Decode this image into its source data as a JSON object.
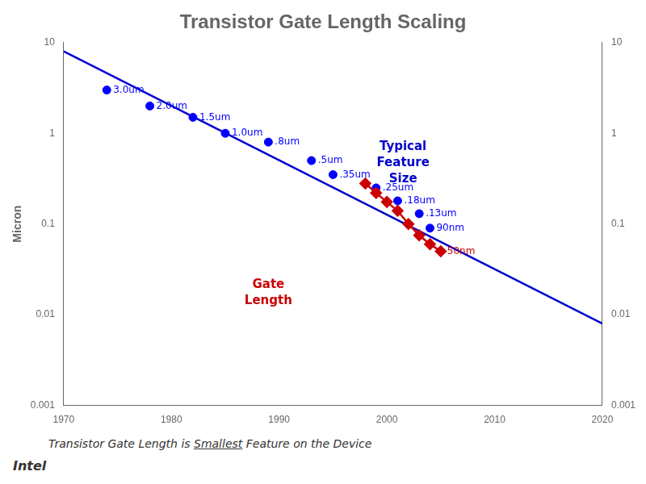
{
  "chart_data": {
    "type": "scatter",
    "title": "Transistor Gate Length Scaling",
    "y_label": "Micron",
    "xlim": [
      1970,
      2020
    ],
    "xticks": [
      1970,
      1980,
      1990,
      2000,
      2010,
      2020
    ],
    "ylim": [
      0.001,
      10
    ],
    "yticks": [
      0.001,
      0.01,
      0.1,
      1,
      10
    ],
    "y2lim": [
      0.001,
      10
    ],
    "y2ticks": [
      0.001,
      0.01,
      0.1,
      1,
      10
    ],
    "log": "y",
    "grid": false,
    "series": [
      {
        "type": "line",
        "color": "#0000CC",
        "x": [
          1970,
          2020
        ],
        "values": [
          8.0,
          0.008
        ]
      },
      {
        "type": "scatter",
        "color": "#0000FF",
        "marker": "circle",
        "x": [
          1974,
          1978,
          1982,
          1985,
          1989,
          1993,
          1995,
          1999,
          2001,
          2003,
          2004
        ],
        "values": [
          3.0,
          2.0,
          1.5,
          1.0,
          0.8,
          0.5,
          0.35,
          0.25,
          0.18,
          0.13,
          0.09
        ],
        "value_labels": [
          "3.0um",
          "2.0um",
          "1.5um",
          "1.0um",
          ".8um",
          ".5um",
          ".35um",
          ".25um",
          ".18um",
          ".13um",
          "90nm"
        ]
      },
      {
        "type": "line",
        "color": "#CC0000",
        "marker": "diamond",
        "x": [
          1998,
          1999,
          2000,
          2001,
          2002,
          2003,
          2004,
          2005
        ],
        "values": [
          0.28,
          0.22,
          0.175,
          0.14,
          0.1,
          0.075,
          0.06,
          0.05
        ],
        "value_labels": [
          null,
          null,
          null,
          null,
          null,
          null,
          null,
          "50nm"
        ]
      }
    ],
    "annotations": [
      {
        "text": "Typical\nFeature\nSize",
        "color": "#0000CC"
      },
      {
        "text": "Gate\nLength",
        "color": "#CC0000"
      }
    ],
    "footer": [
      "Transistor Gate Length is ",
      "Smallest",
      " Feature on the Device"
    ],
    "source": "Intel"
  }
}
